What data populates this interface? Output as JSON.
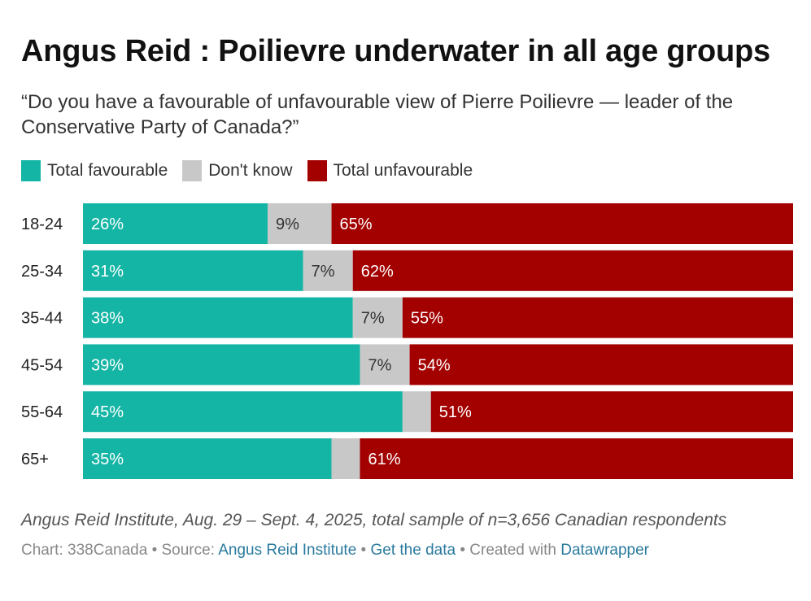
{
  "title": "Angus Reid : Poilievre underwater in all age groups",
  "subtitle": "“Do you have a favourable of unfavourable view of Pierre Poilievre — leader of the Conservative Party of Canada?”",
  "colors": {
    "favourable": "#14b5a4",
    "dont_know": "#c8c8c8",
    "unfavourable": "#a30000"
  },
  "chart_data": {
    "type": "bar",
    "orientation": "horizontal",
    "stacked": true,
    "categories": [
      "18-24",
      "25-34",
      "35-44",
      "45-54",
      "55-64",
      "65+"
    ],
    "series": [
      {
        "name": "Total favourable",
        "key": "favourable",
        "values": [
          26,
          31,
          38,
          39,
          45,
          35
        ],
        "labels": [
          "26%",
          "31%",
          "38%",
          "39%",
          "45%",
          "35%"
        ]
      },
      {
        "name": "Don't know",
        "key": "dont_know",
        "values": [
          9,
          7,
          7,
          7,
          4,
          4
        ],
        "labels": [
          "9%",
          "7%",
          "7%",
          "7%",
          "",
          ""
        ]
      },
      {
        "name": "Total unfavourable",
        "key": "unfavourable",
        "values": [
          65,
          62,
          55,
          54,
          51,
          61
        ],
        "labels": [
          "65%",
          "62%",
          "55%",
          "54%",
          "51%",
          "61%"
        ]
      }
    ],
    "xlim": [
      0,
      100
    ]
  },
  "note": "Angus Reid Institute, Aug. 29 – Sept. 4, 2025, total sample of n=3,656 Canadian respondents",
  "footer": {
    "chart_by": "Chart: 338Canada",
    "sep": "•",
    "source_label": "Source:",
    "source_link": "Angus Reid Institute",
    "get_data": "Get the data",
    "created_with": "Created with",
    "datawrapper": "Datawrapper"
  }
}
